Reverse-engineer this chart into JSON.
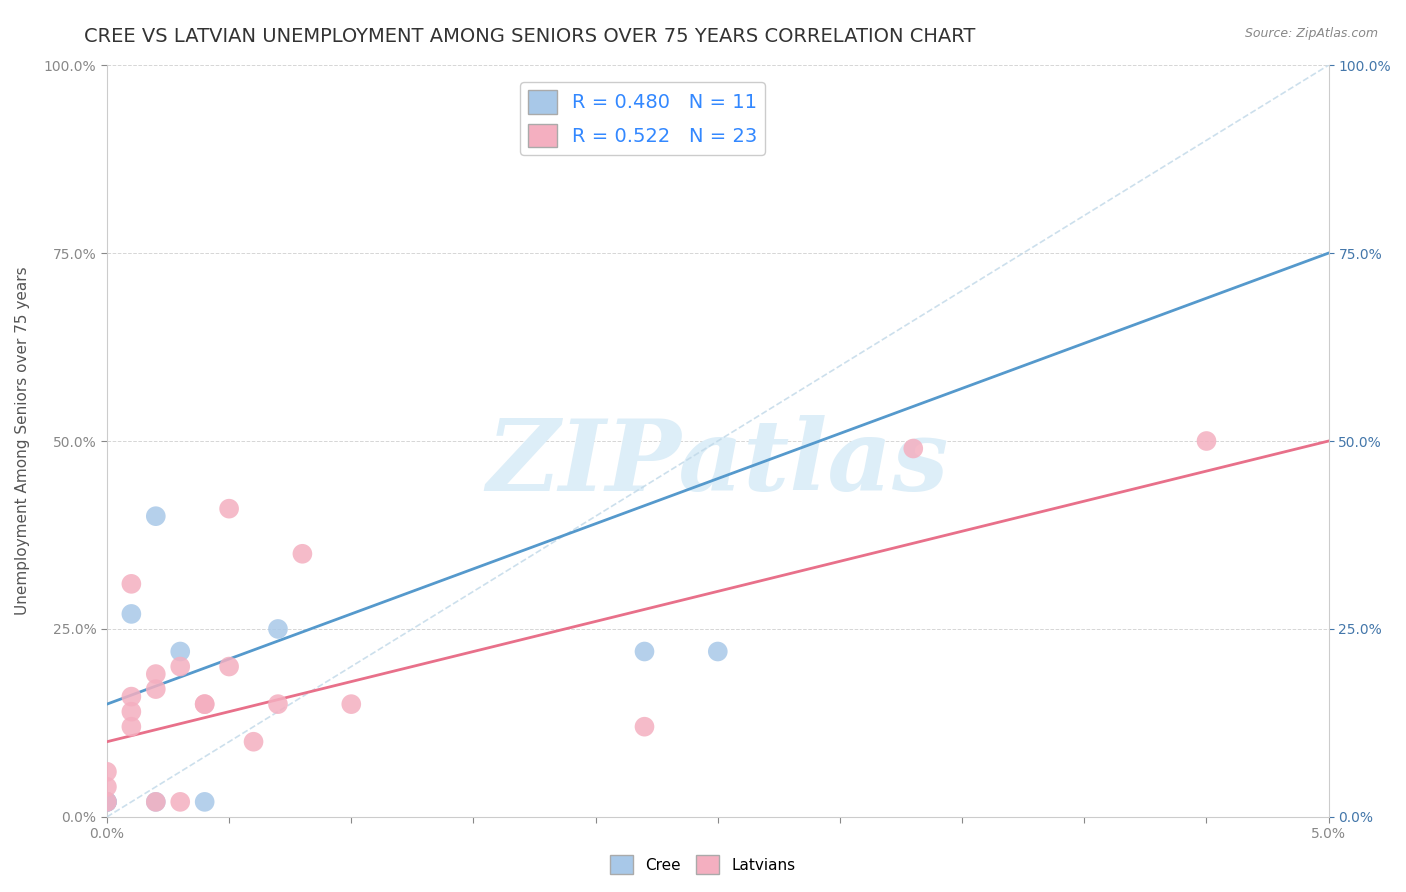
{
  "title": "CREE VS LATVIAN UNEMPLOYMENT AMONG SENIORS OVER 75 YEARS CORRELATION CHART",
  "source": "Source: ZipAtlas.com",
  "ylabel": "Unemployment Among Seniors over 75 years",
  "xlim": [
    0.0,
    0.05
  ],
  "ylim": [
    0.0,
    1.0
  ],
  "xticks": [
    0.0,
    0.005,
    0.01,
    0.015,
    0.02,
    0.025,
    0.03,
    0.035,
    0.04,
    0.045,
    0.05
  ],
  "xtick_labels": [
    "0.0%",
    "",
    "",
    "",
    "",
    "",
    "",
    "",
    "",
    "",
    "5.0%"
  ],
  "yticks": [
    0.0,
    0.25,
    0.5,
    0.75,
    1.0
  ],
  "ytick_labels": [
    "0.0%",
    "25.0%",
    "50.0%",
    "75.0%",
    "100.0%"
  ],
  "cree_color": "#a8c8e8",
  "latvian_color": "#f4afc0",
  "cree_line_color": "#5599cc",
  "latvian_line_color": "#e8708a",
  "ref_line_color": "#c0d8e8",
  "legend_R_cree": "0.480",
  "legend_N_cree": "11",
  "legend_R_latvian": "0.522",
  "legend_N_latvian": "23",
  "cree_points_x": [
    0.0,
    0.0,
    0.0,
    0.001,
    0.002,
    0.002,
    0.003,
    0.004,
    0.007,
    0.022,
    0.025
  ],
  "cree_points_y": [
    0.02,
    0.02,
    0.02,
    0.27,
    0.4,
    0.02,
    0.22,
    0.02,
    0.25,
    0.22,
    0.22
  ],
  "latvian_points_x": [
    0.0,
    0.0,
    0.0,
    0.001,
    0.001,
    0.001,
    0.001,
    0.002,
    0.002,
    0.002,
    0.003,
    0.003,
    0.004,
    0.004,
    0.005,
    0.005,
    0.006,
    0.007,
    0.008,
    0.01,
    0.022,
    0.033,
    0.045
  ],
  "latvian_points_y": [
    0.02,
    0.04,
    0.06,
    0.12,
    0.14,
    0.16,
    0.31,
    0.17,
    0.19,
    0.02,
    0.2,
    0.02,
    0.15,
    0.15,
    0.2,
    0.41,
    0.1,
    0.15,
    0.35,
    0.15,
    0.12,
    0.49,
    0.5
  ],
  "cree_trend_x0": 0.0,
  "cree_trend_y0": 0.15,
  "cree_trend_x1": 0.05,
  "cree_trend_y1": 0.75,
  "latvian_trend_x0": 0.0,
  "latvian_trend_y0": 0.1,
  "latvian_trend_x1": 0.05,
  "latvian_trend_y1": 0.5,
  "background_color": "#ffffff",
  "watermark_text": "ZIPatlas",
  "title_fontsize": 14,
  "label_fontsize": 11,
  "legend_fontsize": 14,
  "tick_fontsize": 10
}
